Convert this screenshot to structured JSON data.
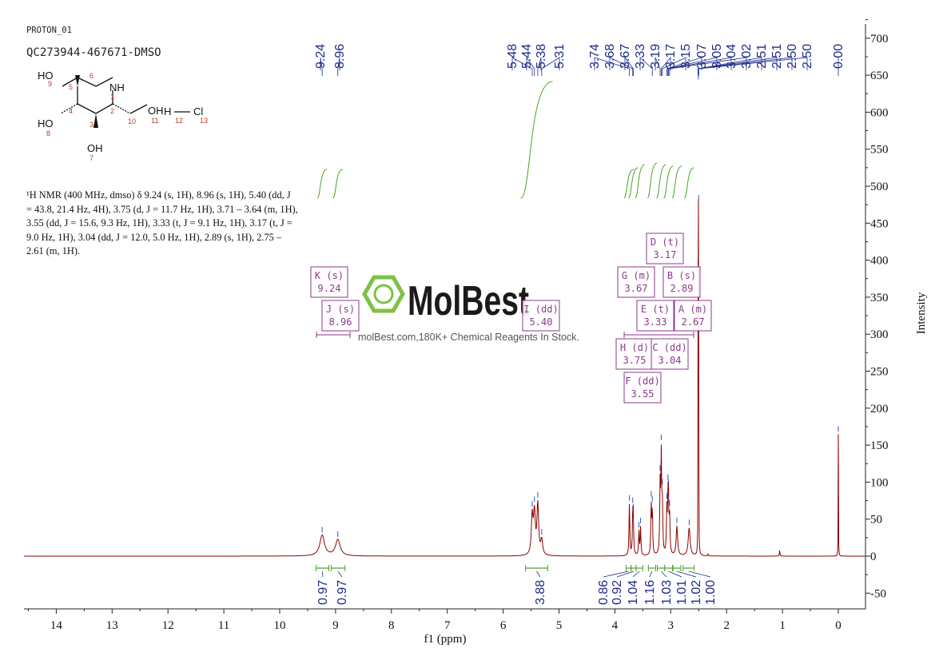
{
  "header": {
    "title": "PROTON_01",
    "sample": "QC273944-467671-DMSO"
  },
  "description": "¹H NMR (400 MHz, dmso) δ 9.24 (s, 1H), 8.96 (s, 1H), 5.40 (dd, J = 43.8, 21.4 Hz, 4H), 3.75 (d, J = 11.7 Hz, 1H), 3.71 – 3.64 (m, 1H), 3.55 (dd, J = 15.6, 9.3 Hz, 1H), 3.33 (t, J = 9.1 Hz, 1H), 3.17 (t, J = 9.0 Hz, 1H), 3.04 (dd, J = 12.0, 5.0 Hz, 1H), 2.89 (s, 1H), 2.75 – 2.61 (m, 1H).",
  "structure": {
    "atoms": [
      "HO",
      "NH",
      "HO",
      "OH",
      "OH",
      "H",
      "Cl"
    ],
    "numbers": [
      "9",
      "5",
      "6",
      "1",
      "4",
      "2",
      "10",
      "11",
      "12",
      "13",
      "8",
      "3",
      "7"
    ]
  },
  "watermark": {
    "brand": "MolBest",
    "tagline": "molBest.com,180K+ Chemical Reagents In Stock."
  },
  "colors": {
    "spectrum": "#8b0000",
    "peak_labels": "#1c2a8c",
    "integral_curves": "#4aa32a",
    "multiplet_boxes": "#8b3a8b",
    "axis": "#222222",
    "watermark_green": "#7dc242"
  },
  "chart_data": {
    "type": "line",
    "xlabel": "f1 (ppm)",
    "ylabel": "Intensity",
    "xlim": [
      14.5,
      -0.5
    ],
    "ylim": [
      -70,
      720
    ],
    "x_ticks": [
      14,
      13,
      12,
      11,
      10,
      9,
      8,
      7,
      6,
      5,
      4,
      3,
      2,
      1,
      0
    ],
    "y_ticks": [
      -50,
      0,
      50,
      100,
      150,
      200,
      250,
      300,
      350,
      400,
      450,
      500,
      550,
      600,
      650,
      700
    ],
    "grid": false,
    "peaks": [
      {
        "ppm": 9.24,
        "height": 28,
        "width": 0.05
      },
      {
        "ppm": 8.96,
        "height": 22,
        "width": 0.05
      },
      {
        "ppm": 5.48,
        "height": 52,
        "width": 0.018
      },
      {
        "ppm": 5.44,
        "height": 55,
        "width": 0.018
      },
      {
        "ppm": 5.38,
        "height": 68,
        "width": 0.018
      },
      {
        "ppm": 5.31,
        "height": 20,
        "width": 0.02
      },
      {
        "ppm": 3.74,
        "height": 70,
        "width": 0.008
      },
      {
        "ppm": 3.68,
        "height": 52,
        "width": 0.008
      },
      {
        "ppm": 3.67,
        "height": 38,
        "width": 0.008
      },
      {
        "ppm": 3.57,
        "height": 32,
        "width": 0.008
      },
      {
        "ppm": 3.54,
        "height": 38,
        "width": 0.008
      },
      {
        "ppm": 3.35,
        "height": 68,
        "width": 0.008
      },
      {
        "ppm": 3.33,
        "height": 60,
        "width": 0.008
      },
      {
        "ppm": 3.19,
        "height": 90,
        "width": 0.008
      },
      {
        "ppm": 3.17,
        "height": 130,
        "width": 0.008
      },
      {
        "ppm": 3.15,
        "height": 70,
        "width": 0.008
      },
      {
        "ppm": 3.07,
        "height": 58,
        "width": 0.008
      },
      {
        "ppm": 3.05,
        "height": 65,
        "width": 0.008
      },
      {
        "ppm": 3.04,
        "height": 55,
        "width": 0.008
      },
      {
        "ppm": 3.02,
        "height": 50,
        "width": 0.008
      },
      {
        "ppm": 2.89,
        "height": 40,
        "width": 0.015
      },
      {
        "ppm": 2.67,
        "height": 38,
        "width": 0.02
      },
      {
        "ppm": 2.51,
        "height": 300,
        "width": 0.002
      },
      {
        "ppm": 2.505,
        "height": 545,
        "width": 0.002
      },
      {
        "ppm": 2.5,
        "height": 390,
        "width": 0.002
      },
      {
        "ppm": 2.33,
        "height": 3,
        "width": 0.005
      },
      {
        "ppm": 1.05,
        "height": 8,
        "width": 0.006
      },
      {
        "ppm": 0.0,
        "height": 165,
        "width": 0.0025
      }
    ],
    "peak_labels": [
      "9.24",
      "8.96",
      "5.48",
      "5.44",
      "5.38",
      "5.31",
      "3.74",
      "3.68",
      "3.67",
      "3.33",
      "3.19",
      "3.17",
      "3.15",
      "3.07",
      "3.05",
      "3.04",
      "3.02",
      "2.51",
      "2.51",
      "2.50",
      "2.50",
      "0.00"
    ],
    "integrals": [
      {
        "from": 9.35,
        "to": 9.12,
        "value": "0.97"
      },
      {
        "from": 9.08,
        "to": 8.83,
        "value": "0.97"
      },
      {
        "from": 5.6,
        "to": 5.2,
        "value": "3.88"
      },
      {
        "from": 3.8,
        "to": 3.71,
        "value": "0.86"
      },
      {
        "from": 3.71,
        "to": 3.62,
        "value": "0.92"
      },
      {
        "from": 3.62,
        "to": 3.5,
        "value": "1.04"
      },
      {
        "from": 3.4,
        "to": 3.27,
        "value": "1.16"
      },
      {
        "from": 3.24,
        "to": 3.11,
        "value": "1.03"
      },
      {
        "from": 3.11,
        "to": 2.97,
        "value": "1.01"
      },
      {
        "from": 2.96,
        "to": 2.82,
        "value": "1.02"
      },
      {
        "from": 2.78,
        "to": 2.58,
        "value": "1.00"
      }
    ],
    "multiplets": [
      {
        "letter": "K",
        "type": "s",
        "shift": "9.24"
      },
      {
        "letter": "J",
        "type": "s",
        "shift": "8.96"
      },
      {
        "letter": "I",
        "type": "dd",
        "shift": "5.40"
      },
      {
        "letter": "G",
        "type": "m",
        "shift": "3.67"
      },
      {
        "letter": "D",
        "type": "t",
        "shift": "3.17"
      },
      {
        "letter": "B",
        "type": "s",
        "shift": "2.89"
      },
      {
        "letter": "E",
        "type": "t",
        "shift": "3.33"
      },
      {
        "letter": "A",
        "type": "m",
        "shift": "2.67"
      },
      {
        "letter": "H",
        "type": "d",
        "shift": "3.75"
      },
      {
        "letter": "C",
        "type": "dd",
        "shift": "3.04"
      },
      {
        "letter": "F",
        "type": "dd",
        "shift": "3.55"
      }
    ]
  }
}
